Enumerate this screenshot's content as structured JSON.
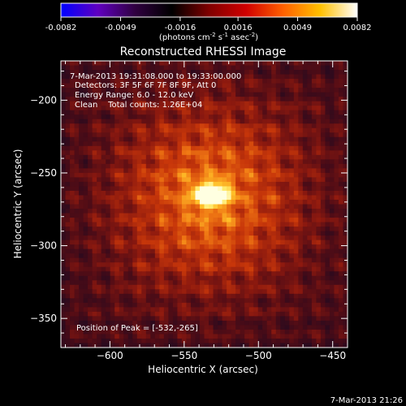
{
  "colorbar": {
    "ticks": [
      "-0.0082",
      "-0.0049",
      "-0.0016",
      "0.0016",
      "0.0049",
      "0.0082"
    ],
    "tick_values": [
      -0.0082,
      -0.0049,
      -0.0016,
      0.0016,
      0.0049,
      0.0082
    ],
    "range": [
      -0.0082,
      0.0082
    ],
    "units_parts": {
      "prefix": "(photons cm",
      "exp1": "-2",
      "mid": " s",
      "exp2": "-1",
      "mid2": " asec",
      "exp3": "-2",
      "suffix": ")"
    },
    "gradient_stops": [
      "#0000ff",
      "#6000c0",
      "#300040",
      "#000000",
      "#800000",
      "#d00000",
      "#ff6000",
      "#ffc000",
      "#ffffff"
    ]
  },
  "chart_data": {
    "type": "heatmap",
    "title": "Reconstructed RHESSI Image",
    "xlabel": "Heliocentric X (arcsec)",
    "ylabel": "Heliocentric Y (arcsec)",
    "xlim": [
      -633,
      -440
    ],
    "ylim": [
      -370,
      -173
    ],
    "x_ticks": [
      {
        "value": -600,
        "label": "−600"
      },
      {
        "value": -550,
        "label": "−550"
      },
      {
        "value": -500,
        "label": "−500"
      },
      {
        "value": -450,
        "label": "−450"
      }
    ],
    "y_ticks": [
      {
        "value": -200,
        "label": "−200"
      },
      {
        "value": -250,
        "label": "−250"
      },
      {
        "value": -300,
        "label": "−300"
      },
      {
        "value": -350,
        "label": "−350"
      }
    ],
    "peak": {
      "x": -532,
      "y": -265,
      "value": 0.0082
    },
    "annotations": [
      "7-Mar-2013 19:31:08.000 to 19:33:00.000",
      "Detectors: 3F 5F 6F 7F 8F 9F, Att 0",
      "Energy Range: 6.0 - 12.0 keV",
      "Clean    Total counts: 1.26E+04"
    ],
    "peak_label": "Position of Peak = [-532,-265]",
    "timestamp": "7-Mar-2013 21:26"
  }
}
